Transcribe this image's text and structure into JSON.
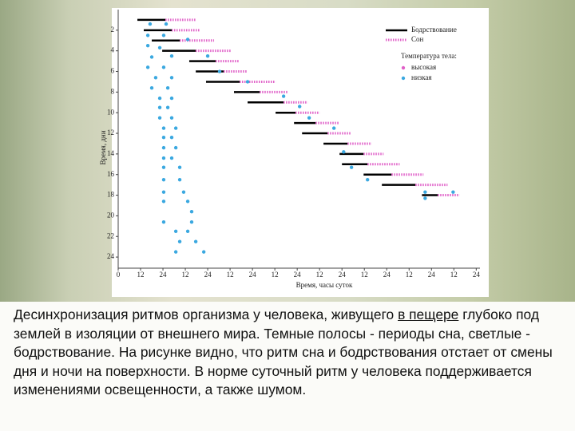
{
  "chart_data": {
    "type": "actogram",
    "xlabel": "Время, часы суток",
    "ylabel": "Время, дни",
    "xlim": [
      0,
      194
    ],
    "xticks": [
      0,
      12,
      24,
      {
        "value": 36,
        "label": "12"
      },
      {
        "value": 48,
        "label": "24"
      },
      {
        "value": 60,
        "label": "12"
      },
      {
        "value": 72,
        "label": "24"
      },
      {
        "value": 84,
        "label": "12"
      },
      {
        "value": 96,
        "label": "24"
      },
      {
        "value": 108,
        "label": "12"
      },
      {
        "value": 120,
        "label": "24"
      },
      {
        "value": 132,
        "label": "12"
      },
      {
        "value": 144,
        "label": "24"
      },
      {
        "value": 156,
        "label": "12"
      },
      {
        "value": 168,
        "label": "24"
      },
      {
        "value": 180,
        "label": "12"
      },
      {
        "value": 192,
        "label": "24"
      }
    ],
    "ylim": [
      0,
      25
    ],
    "yticks": [
      2,
      4,
      6,
      8,
      10,
      12,
      14,
      16,
      18,
      20,
      22,
      24
    ],
    "days": [
      1,
      2,
      3,
      4,
      5,
      6,
      7,
      8,
      9,
      10,
      11,
      12,
      13,
      14,
      15,
      16,
      17,
      18
    ],
    "series": [
      {
        "name": "Бодрствование",
        "color": "#000000",
        "intervals": [
          [
            10.3,
            25.3
          ],
          [
            13.7,
            28.7
          ],
          [
            18,
            33
          ],
          [
            23.6,
            41.6
          ],
          [
            38.1,
            52.3
          ],
          [
            41.6,
            56.6
          ],
          [
            47.1,
            65.1
          ],
          [
            62.1,
            75.9
          ],
          [
            69.4,
            88.7
          ],
          [
            84.4,
            95.1
          ],
          [
            94.3,
            105.9
          ],
          [
            98.6,
            112.3
          ],
          [
            110.1,
            123
          ],
          [
            118.7,
            131.6
          ],
          [
            120,
            133.7
          ],
          [
            131.6,
            146.6
          ],
          [
            141.4,
            159.4
          ],
          [
            162.9,
            171.4
          ]
        ]
      },
      {
        "name": "Сон",
        "color": "#e060c8",
        "intervals": [
          [
            25.3,
            41.6
          ],
          [
            28.7,
            43.7
          ],
          [
            33,
            51.4
          ],
          [
            41.6,
            60.4
          ],
          [
            52.3,
            65.1
          ],
          [
            56.6,
            69.4
          ],
          [
            65.1,
            84.4
          ],
          [
            75.9,
            90.9
          ],
          [
            88.7,
            101.6
          ],
          [
            95.1,
            108
          ],
          [
            105.9,
            118.7
          ],
          [
            112.3,
            125.1
          ],
          [
            123,
            135.9
          ],
          [
            131.6,
            142.3
          ],
          [
            133.7,
            150.9
          ],
          [
            146.6,
            163.7
          ],
          [
            159.4,
            176.6
          ],
          [
            171.4,
            183
          ]
        ]
      }
    ],
    "temperature": {
      "title": "Температура тела:",
      "series": [
        {
          "name": "высокая",
          "color": "#e060c8"
        },
        {
          "name": "низкая",
          "color": "#3aa8e0",
          "points": [
            [
              17.1,
              1.4
            ],
            [
              25.7,
              1.4
            ],
            [
              15.9,
              2.5
            ],
            [
              24.4,
              2.5
            ],
            [
              15.9,
              3.5
            ],
            [
              22.3,
              3.7
            ],
            [
              18,
              4.6
            ],
            [
              28.7,
              4.5
            ],
            [
              15.9,
              5.6
            ],
            [
              24.4,
              5.6
            ],
            [
              20.1,
              6.6
            ],
            [
              28.7,
              6.6
            ],
            [
              18,
              7.6
            ],
            [
              26.6,
              7.6
            ],
            [
              22.3,
              8.6
            ],
            [
              28.7,
              8.6
            ],
            [
              22.3,
              9.5
            ],
            [
              26.6,
              9.5
            ],
            [
              22.3,
              10.5
            ],
            [
              28.7,
              10.5
            ],
            [
              24.4,
              11.5
            ],
            [
              30.9,
              11.5
            ],
            [
              24.4,
              12.4
            ],
            [
              28.7,
              12.4
            ],
            [
              24.4,
              13.4
            ],
            [
              30.9,
              13.4
            ],
            [
              24.4,
              14.4
            ],
            [
              28.7,
              14.4
            ],
            [
              24.4,
              15.3
            ],
            [
              33,
              15.3
            ],
            [
              24.4,
              16.5
            ],
            [
              33,
              16.5
            ],
            [
              24.4,
              17.7
            ],
            [
              35.1,
              17.7
            ],
            [
              24.4,
              18.6
            ],
            [
              37.3,
              18.6
            ],
            [
              39.4,
              19.6
            ],
            [
              24.4,
              20.6
            ],
            [
              39.4,
              20.6
            ],
            [
              30.9,
              21.5
            ],
            [
              37.3,
              21.5
            ],
            [
              33,
              22.5
            ],
            [
              41.6,
              22.5
            ],
            [
              30.9,
              23.5
            ],
            [
              45.9,
              23.5
            ],
            [
              37.3,
              2.9
            ],
            [
              48,
              4.5
            ],
            [
              54.4,
              6
            ],
            [
              69.4,
              7
            ],
            [
              88.7,
              8.4
            ],
            [
              97.3,
              9.4
            ],
            [
              102.4,
              10.5
            ],
            [
              115.7,
              11.5
            ],
            [
              120.9,
              13.8
            ],
            [
              125.1,
              15.3
            ],
            [
              133.7,
              16.5
            ],
            [
              164.6,
              17.7
            ],
            [
              164.6,
              18.3
            ],
            [
              179.6,
              17.7
            ]
          ]
        }
      ]
    }
  },
  "caption": {
    "before": "Десинхронизация ритмов организма у человека, живущего ",
    "underlined": "в пещере",
    "after": " глубоко под землей в изоляции от внешнего мира. Темные полосы - периоды сна, светлые - бодрствование. На рисунке видно, что ритм сна и бодрствования отстает от смены дня и ночи на поверхности. В норме суточный ритм у человека поддерживается изменениями освещенности, а также шумом."
  }
}
